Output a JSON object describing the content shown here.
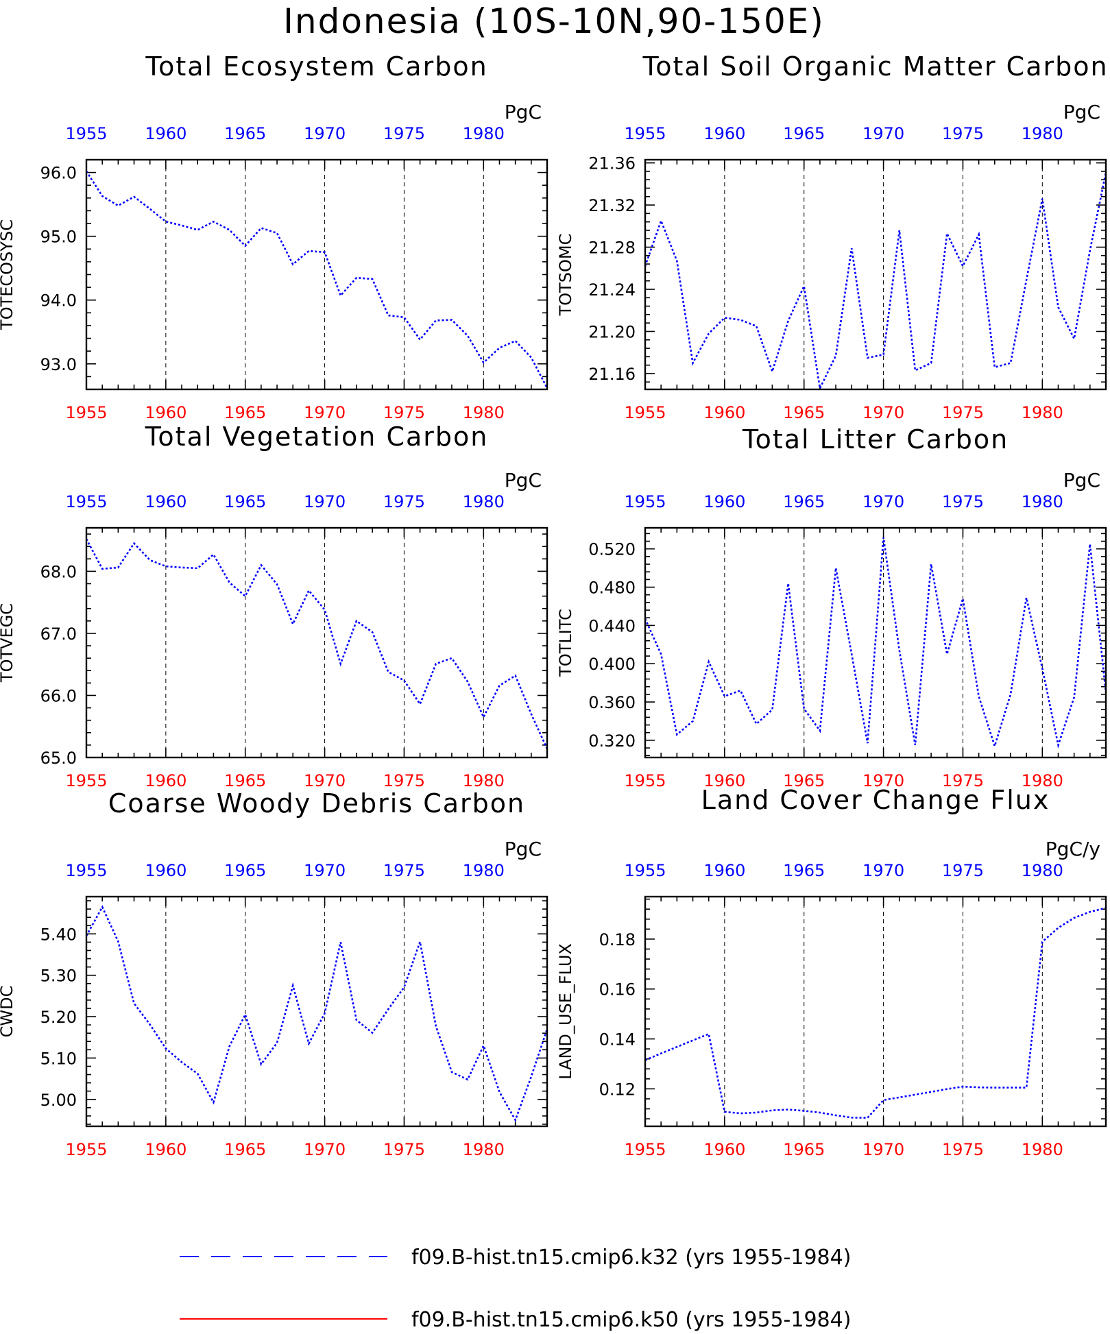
{
  "figure": {
    "title": "Indonesia (10S-10N,90-150E)"
  },
  "colors": {
    "top_axis_labels": "#0000ff",
    "bottom_axis_labels": "#ff0000",
    "series_k32": "#0000ff",
    "series_k50": "#ff0000"
  },
  "legend": [
    {
      "label": "f09.B-hist.tn15.cmip6.k32 (yrs 1955-1984)",
      "color": "#0000ff",
      "style": "dashed"
    },
    {
      "label": "f09.B-hist.tn15.cmip6.k50 (yrs 1955-1984)",
      "color": "#ff0000",
      "style": "solid"
    }
  ],
  "chart_data": [
    {
      "type": "line",
      "title": "Total Ecosystem Carbon",
      "units": "PgC",
      "ylabel": "TOTECOSYSC",
      "xlim": [
        1955,
        1984
      ],
      "ylim": [
        92.6,
        96.2
      ],
      "xticks": [
        1955,
        1960,
        1965,
        1970,
        1975,
        1980
      ],
      "yticks": [
        93.0,
        94.0,
        95.0,
        96.0
      ],
      "ytick_labels": [
        "93.0",
        "94.0",
        "95.0",
        "96.0"
      ],
      "grid": "vertical dashed at labeled years",
      "x": [
        1955,
        1956,
        1957,
        1958,
        1959,
        1960,
        1961,
        1962,
        1963,
        1964,
        1965,
        1966,
        1967,
        1968,
        1969,
        1970,
        1971,
        1972,
        1973,
        1974,
        1975,
        1976,
        1977,
        1978,
        1979,
        1980,
        1981,
        1982,
        1983,
        1984
      ],
      "series": [
        {
          "values": [
            96.02,
            95.63,
            95.48,
            95.62,
            95.43,
            95.23,
            95.17,
            95.1,
            95.23,
            95.1,
            94.85,
            95.13,
            95.05,
            94.56,
            94.77,
            94.75,
            94.07,
            94.35,
            94.33,
            93.76,
            93.73,
            93.38,
            93.68,
            93.69,
            93.44,
            93.02,
            93.25,
            93.36,
            93.1,
            92.62
          ]
        }
      ]
    },
    {
      "type": "line",
      "title": "Total Soil Organic Matter Carbon",
      "units": "PgC",
      "ylabel": "TOTSOMC",
      "xlim": [
        1955,
        1984
      ],
      "ylim": [
        21.145,
        21.363
      ],
      "xticks": [
        1955,
        1960,
        1965,
        1970,
        1975,
        1980
      ],
      "yticks": [
        21.16,
        21.2,
        21.24,
        21.28,
        21.32,
        21.36
      ],
      "ytick_labels": [
        "21.16",
        "21.20",
        "21.24",
        "21.28",
        "21.32",
        "21.36"
      ],
      "grid": "vertical dashed at labeled years",
      "x": [
        1955,
        1956,
        1957,
        1958,
        1959,
        1960,
        1961,
        1962,
        1963,
        1964,
        1965,
        1966,
        1967,
        1968,
        1969,
        1970,
        1971,
        1972,
        1973,
        1974,
        1975,
        1976,
        1977,
        1978,
        1979,
        1980,
        1981,
        1982,
        1983,
        1984
      ],
      "series": [
        {
          "values": [
            21.262,
            21.305,
            21.267,
            21.17,
            21.198,
            21.213,
            21.211,
            21.205,
            21.162,
            21.21,
            21.243,
            21.146,
            21.177,
            21.279,
            21.175,
            21.178,
            21.296,
            21.163,
            21.17,
            21.293,
            21.262,
            21.292,
            21.166,
            21.17,
            21.249,
            21.326,
            21.223,
            21.193,
            21.277,
            21.351
          ]
        }
      ]
    },
    {
      "type": "line",
      "title": "Total Vegetation Carbon",
      "units": "PgC",
      "ylabel": "TOTVEGC",
      "xlim": [
        1955,
        1984
      ],
      "ylim": [
        65.0,
        68.7
      ],
      "xticks": [
        1955,
        1960,
        1965,
        1970,
        1975,
        1980
      ],
      "yticks": [
        65.0,
        66.0,
        67.0,
        68.0
      ],
      "ytick_labels": [
        "65.0",
        "66.0",
        "67.0",
        "68.0"
      ],
      "grid": "vertical dashed at labeled years",
      "x": [
        1955,
        1956,
        1957,
        1958,
        1959,
        1960,
        1961,
        1962,
        1963,
        1964,
        1965,
        1966,
        1967,
        1968,
        1969,
        1970,
        1971,
        1972,
        1973,
        1974,
        1975,
        1976,
        1977,
        1978,
        1979,
        1980,
        1981,
        1982,
        1983,
        1984
      ],
      "series": [
        {
          "values": [
            68.52,
            68.04,
            68.06,
            68.45,
            68.18,
            68.08,
            68.06,
            68.05,
            68.27,
            67.82,
            67.6,
            68.1,
            67.79,
            67.15,
            67.69,
            67.38,
            66.51,
            67.2,
            67.02,
            66.38,
            66.24,
            65.86,
            66.51,
            66.6,
            66.22,
            65.65,
            66.16,
            66.32,
            65.7,
            65.14
          ]
        }
      ]
    },
    {
      "type": "line",
      "title": "Total Litter Carbon",
      "units": "PgC",
      "ylabel": "TOTLITC",
      "xlim": [
        1955,
        1984
      ],
      "ylim": [
        0.302,
        0.542
      ],
      "xticks": [
        1955,
        1960,
        1965,
        1970,
        1975,
        1980
      ],
      "yticks": [
        0.32,
        0.36,
        0.4,
        0.44,
        0.48,
        0.52
      ],
      "ytick_labels": [
        "0.320",
        "0.360",
        "0.400",
        "0.440",
        "0.480",
        "0.520"
      ],
      "grid": "vertical dashed at labeled years",
      "x": [
        1955,
        1956,
        1957,
        1958,
        1959,
        1960,
        1961,
        1962,
        1963,
        1964,
        1965,
        1966,
        1967,
        1968,
        1969,
        1970,
        1971,
        1972,
        1973,
        1974,
        1975,
        1976,
        1977,
        1978,
        1979,
        1980,
        1981,
        1982,
        1983,
        1984
      ],
      "series": [
        {
          "values": [
            0.447,
            0.41,
            0.326,
            0.34,
            0.402,
            0.366,
            0.372,
            0.337,
            0.352,
            0.484,
            0.353,
            0.33,
            0.5,
            0.41,
            0.317,
            0.532,
            0.414,
            0.315,
            0.504,
            0.41,
            0.468,
            0.366,
            0.314,
            0.368,
            0.469,
            0.395,
            0.315,
            0.365,
            0.525,
            0.37
          ]
        }
      ]
    },
    {
      "type": "line",
      "title": "Coarse Woody Debris Carbon",
      "units": "PgC",
      "ylabel": "CWDC",
      "xlim": [
        1955,
        1984
      ],
      "ylim": [
        4.935,
        5.49
      ],
      "xticks": [
        1955,
        1960,
        1965,
        1970,
        1975,
        1980
      ],
      "yticks": [
        5.0,
        5.1,
        5.2,
        5.3,
        5.4
      ],
      "ytick_labels": [
        "5.00",
        "5.10",
        "5.20",
        "5.30",
        "5.40"
      ],
      "grid": "vertical dashed at labeled years",
      "x": [
        1955,
        1956,
        1957,
        1958,
        1959,
        1960,
        1961,
        1962,
        1963,
        1964,
        1965,
        1966,
        1967,
        1968,
        1969,
        1970,
        1971,
        1972,
        1973,
        1974,
        1975,
        1976,
        1977,
        1978,
        1979,
        1980,
        1981,
        1982,
        1983,
        1984
      ],
      "series": [
        {
          "values": [
            5.395,
            5.465,
            5.382,
            5.232,
            5.181,
            5.123,
            5.09,
            5.062,
            4.993,
            5.128,
            5.205,
            5.085,
            5.137,
            5.275,
            5.135,
            5.208,
            5.38,
            5.192,
            5.161,
            5.218,
            5.271,
            5.381,
            5.177,
            5.066,
            5.048,
            5.13,
            5.018,
            4.95,
            5.055,
            5.17
          ]
        }
      ]
    },
    {
      "type": "line",
      "title": "Land Cover Change Flux",
      "units": "PgC/y",
      "ylabel": "LAND_USE_FLUX",
      "xlim": [
        1955,
        1984
      ],
      "ylim": [
        0.105,
        0.197
      ],
      "xticks": [
        1955,
        1960,
        1965,
        1970,
        1975,
        1980
      ],
      "yticks": [
        0.12,
        0.14,
        0.16,
        0.18
      ],
      "ytick_labels": [
        "0.12",
        "0.14",
        "0.16",
        "0.18"
      ],
      "grid": "vertical dashed at labeled years",
      "x": [
        1955,
        1956,
        1957,
        1958,
        1959,
        1960,
        1961,
        1962,
        1963,
        1964,
        1965,
        1966,
        1967,
        1968,
        1969,
        1970,
        1971,
        1972,
        1973,
        1974,
        1975,
        1976,
        1977,
        1978,
        1979,
        1980,
        1981,
        1982,
        1983,
        1984
      ],
      "series": [
        {
          "values": [
            0.1315,
            0.1342,
            0.1368,
            0.1394,
            0.142,
            0.1108,
            0.1102,
            0.1105,
            0.1114,
            0.1117,
            0.1112,
            0.1105,
            0.1094,
            0.1085,
            0.1084,
            0.1155,
            0.1166,
            0.1177,
            0.1188,
            0.1199,
            0.1209,
            0.1206,
            0.1205,
            0.1205,
            0.1205,
            0.1789,
            0.1845,
            0.1885,
            0.1909,
            0.1925
          ]
        }
      ]
    }
  ]
}
